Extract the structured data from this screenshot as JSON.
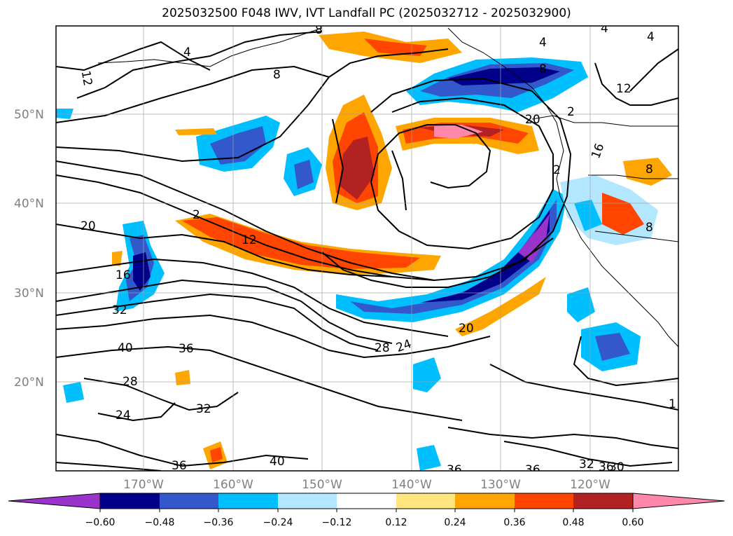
{
  "title": "2025032500 F048 IWV, IVT Landfall PC (2025032712 - 2025032900)",
  "map": {
    "lat_labels": [
      "50°N",
      "40°N",
      "30°N",
      "20°N"
    ],
    "lon_labels": [
      "170°W",
      "160°W",
      "150°W",
      "140°W",
      "130°W",
      "120°W"
    ],
    "contour_labels": [
      "12",
      "8",
      "4",
      "4",
      "8",
      "4",
      "4",
      "8",
      "12",
      "20",
      "12",
      "16",
      "20",
      "16",
      "32",
      "40",
      "36",
      "28",
      "24",
      "20",
      "28",
      "24",
      "32",
      "36",
      "40",
      "36",
      "36",
      "32",
      "36",
      "30",
      "1",
      "8",
      "8",
      "2",
      "2",
      "2"
    ]
  },
  "colorbar": {
    "ticks": [
      "−0.60",
      "−0.48",
      "−0.36",
      "−0.24",
      "−0.12",
      "0.12",
      "0.24",
      "0.36",
      "0.48",
      "0.60"
    ],
    "colors": [
      "#9933CC",
      "#00008B",
      "#3358CC",
      "#00BFFF",
      "#B3E6FF",
      "#FFFFFF",
      "#FFE680",
      "#FFA500",
      "#FF4500",
      "#B22222",
      "#FF88AA"
    ]
  }
}
